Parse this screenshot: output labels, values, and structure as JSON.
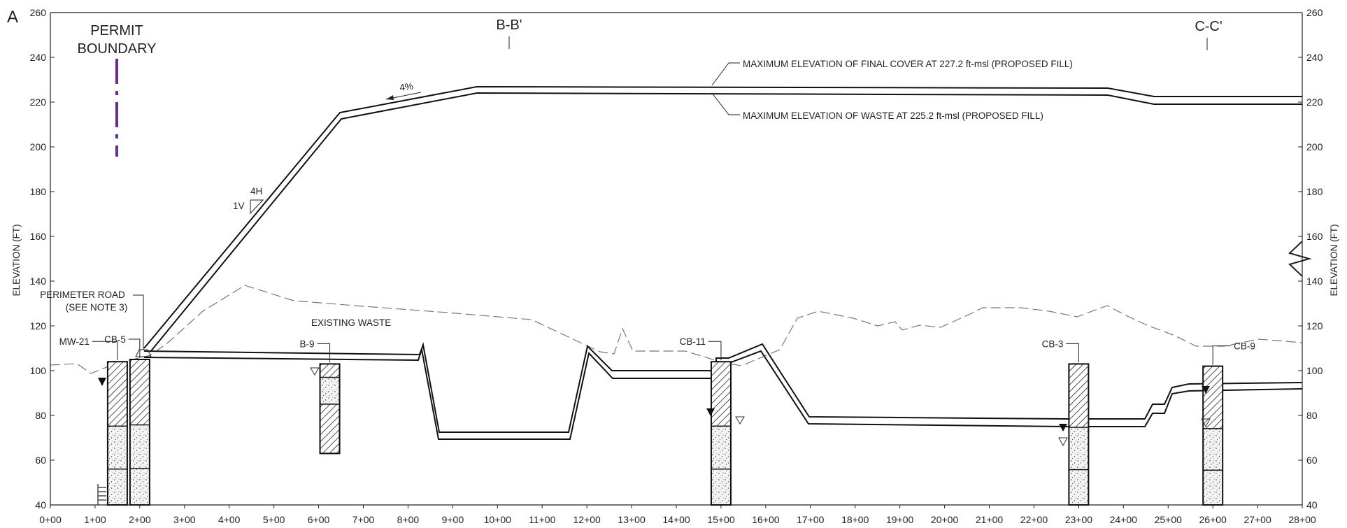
{
  "figure": {
    "panel_letter": "A",
    "left_axis_label": "ELEVATION (FT)",
    "right_axis_label": "ELEVATION (FT)",
    "y_ticks": [
      40,
      60,
      80,
      100,
      120,
      140,
      160,
      180,
      200,
      220,
      240,
      260
    ],
    "x_ticks": [
      "0+00",
      "1+00",
      "2+00",
      "3+00",
      "4+00",
      "5+00",
      "6+00",
      "7+00",
      "8+00",
      "9+00",
      "10+00",
      "11+00",
      "12+00",
      "13+00",
      "14+00",
      "15+00",
      "16+00",
      "17+00",
      "18+00",
      "19+00",
      "20+00",
      "21+00",
      "22+00",
      "23+00",
      "24+00",
      "25+00",
      "26+00",
      "27+00",
      "28+00"
    ]
  },
  "labels": {
    "permit_boundary_1": "PERMIT",
    "permit_boundary_2": "BOUNDARY",
    "section_bb": "B-B'",
    "section_cc": "C-C'",
    "final_cover": "MAXIMUM ELEVATION OF FINAL COVER AT 227.2 ft-msl (PROPOSED FILL)",
    "max_waste": "MAXIMUM ELEVATION OF WASTE AT 225.2 ft-msl (PROPOSED FILL)",
    "slope_top": "4%",
    "slope_h": "4H",
    "slope_v": "1V",
    "perimeter_road_1": "PERIMETER ROAD",
    "perimeter_road_2": "(SEE NOTE 3)",
    "existing_waste": "EXISTING WASTE"
  },
  "borings": [
    {
      "id": "MW-21",
      "station": 1.5,
      "top": 104,
      "bottom": 40
    },
    {
      "id": "CB-5",
      "station": 2.0,
      "top": 105,
      "bottom": 40
    },
    {
      "id": "B-9",
      "station": 6.25,
      "top": 103,
      "bottom": 63
    },
    {
      "id": "CB-11",
      "station": 15.0,
      "top": 104,
      "bottom": 40
    },
    {
      "id": "CB-3",
      "station": 23.0,
      "top": 103,
      "bottom": 40
    },
    {
      "id": "CB-9",
      "station": 26.0,
      "top": 102,
      "bottom": 40
    }
  ],
  "colors": {
    "boundary": "#6a2c91",
    "line": "#111111",
    "ground": "#777777"
  }
}
